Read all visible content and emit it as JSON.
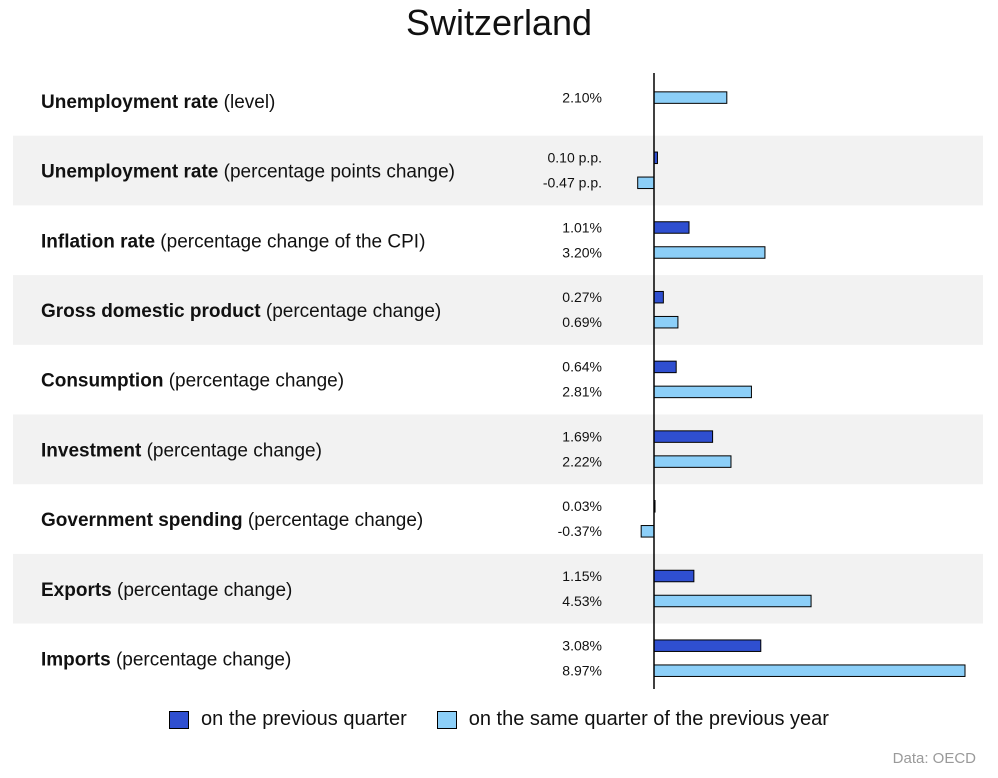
{
  "chart_data": {
    "type": "bar",
    "orientation": "horizontal",
    "title": "Switzerland",
    "source": "Data: OECD",
    "colors": {
      "quarter": "#2f4fd0",
      "year": "#8ccff8",
      "band": "#f2f2f2"
    },
    "series": [
      {
        "key": "quarter",
        "name": "on the previous quarter"
      },
      {
        "key": "year",
        "name": "on the same quarter of the previous year"
      }
    ],
    "categories": [
      {
        "bold": "Unemployment rate",
        "rest": " (level)",
        "quarter": null,
        "quarter_label": "",
        "year": 2.1,
        "year_label": "2.10%"
      },
      {
        "bold": "Unemployment rate",
        "rest": " (percentage points change)",
        "quarter": 0.1,
        "quarter_label": "0.10 p.p.",
        "year": -0.47,
        "year_label": "-0.47 p.p."
      },
      {
        "bold": "Inflation rate",
        "rest": " (percentage change of the CPI)",
        "quarter": 1.01,
        "quarter_label": "1.01%",
        "year": 3.2,
        "year_label": "3.20%"
      },
      {
        "bold": "Gross domestic product",
        "rest": " (percentage change)",
        "quarter": 0.27,
        "quarter_label": "0.27%",
        "year": 0.69,
        "year_label": "0.69%"
      },
      {
        "bold": "Consumption",
        "rest": " (percentage change)",
        "quarter": 0.64,
        "quarter_label": "0.64%",
        "year": 2.81,
        "year_label": "2.81%"
      },
      {
        "bold": "Investment",
        "rest": " (percentage change)",
        "quarter": 1.69,
        "quarter_label": "1.69%",
        "year": 2.22,
        "year_label": "2.22%"
      },
      {
        "bold": "Government spending",
        "rest": " (percentage change)",
        "quarter": 0.03,
        "quarter_label": "0.03%",
        "year": -0.37,
        "year_label": "-0.37%"
      },
      {
        "bold": "Exports",
        "rest": " (percentage change)",
        "quarter": 1.15,
        "quarter_label": "1.15%",
        "year": 4.53,
        "year_label": "4.53%"
      },
      {
        "bold": "Imports",
        "rest": " (percentage change)",
        "quarter": 3.08,
        "quarter_label": "3.08%",
        "year": 8.97,
        "year_label": "8.97%"
      }
    ],
    "xlim": [
      -0.47,
      8.97
    ],
    "grid": false,
    "legend_position": "bottom"
  }
}
